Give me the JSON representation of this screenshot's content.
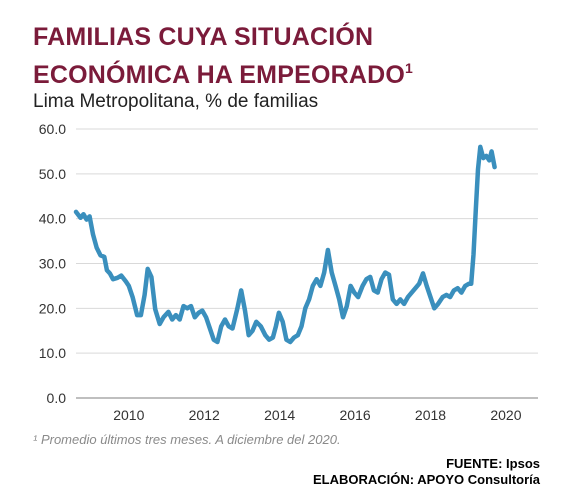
{
  "header": {
    "title_line1": "FAMILIAS CUYA SITUACIÓN",
    "title_line2": "ECONÓMICA HA EMPEORADO",
    "title_superscript": "1",
    "subtitle": "Lima Metropolitana, % de familias"
  },
  "footer": {
    "footnote": "¹ Promedio últimos tres meses. A diciembre del 2020.",
    "source_line1": "FUENTE: Ipsos",
    "source_line2": "ELABORACIÓN: APOYO Consultoría"
  },
  "chart_data": {
    "type": "line",
    "ylabel": "",
    "xlabel": "",
    "ylim": [
      0,
      60
    ],
    "xlim": [
      2008.6,
      2020.85
    ],
    "yticks": [
      "0.0",
      "10.0",
      "20.0",
      "30.0",
      "40.0",
      "50.0",
      "60.0"
    ],
    "ytick_values": [
      0,
      10,
      20,
      30,
      40,
      50,
      60
    ],
    "xticks": [
      "2010",
      "2012",
      "2014",
      "2016",
      "2018",
      "2020"
    ],
    "xtick_values": [
      2010,
      2012,
      2014,
      2016,
      2018,
      2020
    ],
    "grid": true,
    "line_color": "#3a8fbd",
    "series": [
      {
        "points": [
          [
            2008.6,
            41.5
          ],
          [
            2008.72,
            40.2
          ],
          [
            2008.8,
            41.0
          ],
          [
            2008.88,
            39.8
          ],
          [
            2008.96,
            40.5
          ],
          [
            2009.05,
            36.5
          ],
          [
            2009.15,
            33.5
          ],
          [
            2009.25,
            31.8
          ],
          [
            2009.35,
            31.5
          ],
          [
            2009.42,
            28.5
          ],
          [
            2009.5,
            27.8
          ],
          [
            2009.58,
            26.5
          ],
          [
            2009.7,
            26.8
          ],
          [
            2009.8,
            27.3
          ],
          [
            2009.92,
            26.0
          ],
          [
            2010.0,
            25.0
          ],
          [
            2010.1,
            22.5
          ],
          [
            2010.22,
            18.5
          ],
          [
            2010.32,
            18.5
          ],
          [
            2010.42,
            23.0
          ],
          [
            2010.5,
            28.8
          ],
          [
            2010.6,
            27.0
          ],
          [
            2010.7,
            19.8
          ],
          [
            2010.82,
            16.5
          ],
          [
            2010.92,
            18.0
          ],
          [
            2011.05,
            19.2
          ],
          [
            2011.15,
            17.5
          ],
          [
            2011.25,
            18.5
          ],
          [
            2011.35,
            17.5
          ],
          [
            2011.45,
            20.5
          ],
          [
            2011.55,
            20.0
          ],
          [
            2011.65,
            20.5
          ],
          [
            2011.75,
            18.0
          ],
          [
            2011.85,
            19.0
          ],
          [
            2011.95,
            19.5
          ],
          [
            2012.05,
            18.0
          ],
          [
            2012.15,
            15.5
          ],
          [
            2012.25,
            13.0
          ],
          [
            2012.35,
            12.5
          ],
          [
            2012.45,
            16.0
          ],
          [
            2012.55,
            17.5
          ],
          [
            2012.65,
            16.0
          ],
          [
            2012.75,
            15.5
          ],
          [
            2012.88,
            20.0
          ],
          [
            2012.98,
            24.0
          ],
          [
            2013.08,
            19.5
          ],
          [
            2013.18,
            14.0
          ],
          [
            2013.28,
            15.0
          ],
          [
            2013.38,
            17.0
          ],
          [
            2013.5,
            16.0
          ],
          [
            2013.62,
            14.0
          ],
          [
            2013.72,
            13.0
          ],
          [
            2013.82,
            13.5
          ],
          [
            2013.9,
            16.0
          ],
          [
            2013.98,
            19.0
          ],
          [
            2014.08,
            17.0
          ],
          [
            2014.18,
            13.0
          ],
          [
            2014.28,
            12.5
          ],
          [
            2014.38,
            13.5
          ],
          [
            2014.48,
            14.0
          ],
          [
            2014.58,
            16.0
          ],
          [
            2014.68,
            20.0
          ],
          [
            2014.78,
            22.0
          ],
          [
            2014.88,
            25.0
          ],
          [
            2014.98,
            26.5
          ],
          [
            2015.08,
            25.0
          ],
          [
            2015.18,
            28.0
          ],
          [
            2015.28,
            33.0
          ],
          [
            2015.38,
            28.0
          ],
          [
            2015.48,
            25.0
          ],
          [
            2015.58,
            22.0
          ],
          [
            2015.68,
            18.0
          ],
          [
            2015.78,
            20.5
          ],
          [
            2015.88,
            25.0
          ],
          [
            2015.98,
            23.5
          ],
          [
            2016.08,
            22.5
          ],
          [
            2016.2,
            25.0
          ],
          [
            2016.3,
            26.5
          ],
          [
            2016.4,
            27.0
          ],
          [
            2016.5,
            24.0
          ],
          [
            2016.6,
            23.5
          ],
          [
            2016.7,
            26.5
          ],
          [
            2016.8,
            28.0
          ],
          [
            2016.9,
            27.5
          ],
          [
            2017.0,
            22.0
          ],
          [
            2017.1,
            21.0
          ],
          [
            2017.2,
            22.0
          ],
          [
            2017.3,
            21.0
          ],
          [
            2017.4,
            22.5
          ],
          [
            2017.5,
            23.5
          ],
          [
            2017.6,
            24.5
          ],
          [
            2017.7,
            25.5
          ],
          [
            2017.8,
            27.8
          ],
          [
            2017.9,
            25.0
          ],
          [
            2018.0,
            22.5
          ],
          [
            2018.1,
            20.0
          ],
          [
            2018.2,
            21.0
          ],
          [
            2018.32,
            22.5
          ],
          [
            2018.42,
            23.0
          ],
          [
            2018.52,
            22.5
          ],
          [
            2018.62,
            24.0
          ],
          [
            2018.72,
            24.5
          ],
          [
            2018.82,
            23.5
          ],
          [
            2018.92,
            25.0
          ],
          [
            2019.02,
            25.5
          ],
          [
            2019.08,
            25.5
          ],
          [
            2019.14,
            32.0
          ],
          [
            2019.2,
            42.0
          ],
          [
            2019.26,
            51.0
          ],
          [
            2019.32,
            56.0
          ],
          [
            2019.4,
            53.5
          ],
          [
            2019.48,
            54.0
          ],
          [
            2019.56,
            53.0
          ],
          [
            2019.62,
            55.0
          ],
          [
            2019.7,
            51.5
          ]
        ]
      }
    ]
  }
}
